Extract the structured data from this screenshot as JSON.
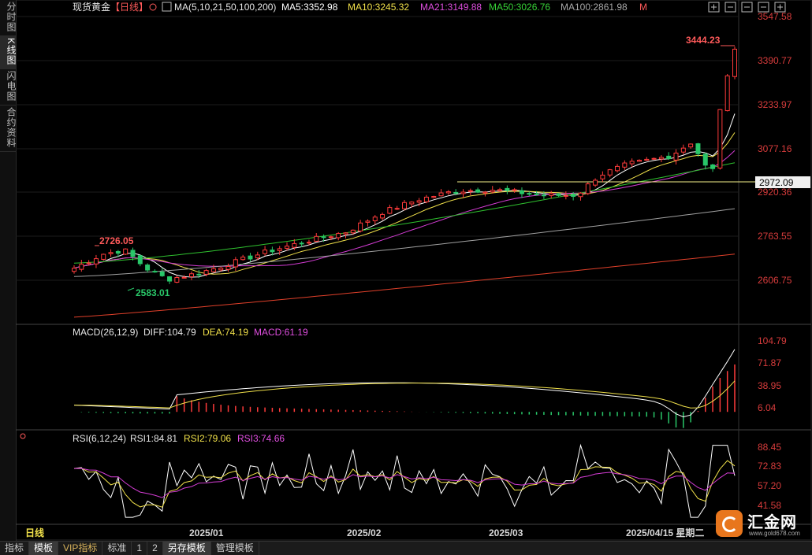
{
  "sidebar": {
    "tabs": [
      {
        "label": "分时图",
        "active": false
      },
      {
        "label": "K线图",
        "active": true
      },
      {
        "label": "闪电图",
        "active": false
      },
      {
        "label": "合约资料",
        "active": false
      }
    ]
  },
  "header": {
    "instrument": "现货黄金",
    "period": "【日线】",
    "ma_label": "MA(5,10,21,50,100,200)",
    "ma5": "MA5:3352.98",
    "ma10": "MA10:3245.32",
    "ma21": "MA21:3149.88",
    "ma50": "MA50:3026.76",
    "ma100": "MA100:2861.98",
    "more": "M"
  },
  "colors": {
    "up": "#ff3b3b",
    "down": "#29c769",
    "ma5": "#ffffff",
    "ma10": "#f0e04a",
    "ma21": "#d43cd4",
    "ma50": "#2fc12f",
    "ma100": "#a0a0a0",
    "ma200": "#e0402a",
    "axis": "#d83c3c",
    "hline": "#f5f08a"
  },
  "price_axis": [
    "3547.58",
    "3390.77",
    "3233.97",
    "3077.16",
    "2920.36",
    "2763.55",
    "2606.75"
  ],
  "price_labels": {
    "high": "3444.23",
    "left_high": "2726.05",
    "low": "2583.01",
    "hline": "2972.09"
  },
  "macd": {
    "label": "MACD(26,12,9)",
    "diff": "DIFF:104.79",
    "dea": "DEA:74.19",
    "macd": "MACD:61.19",
    "axis": [
      "104.79",
      "71.87",
      "38.95",
      "6.04"
    ]
  },
  "rsi": {
    "label": "RSI(6,12,24)",
    "rsi1": "RSI1:84.81",
    "rsi2": "RSI2:79.06",
    "rsi3": "RSI3:74.66",
    "axis": [
      "88.45",
      "72.83",
      "57.20",
      "41.58"
    ]
  },
  "time_axis": {
    "period": "日线",
    "labels": [
      "2025/01",
      "2025/02",
      "2025/03",
      "2025/04/15 星期二"
    ]
  },
  "toolbar_icons": [
    "zoom-in-icon",
    "zoom-out-icon",
    "maximize-icon",
    "settings-icon",
    "close-icon"
  ],
  "bottom_tabs": [
    {
      "label": "指标",
      "active": false
    },
    {
      "label": "模板",
      "active": true
    },
    {
      "label": "VIP指标",
      "active": false,
      "vip": true
    },
    {
      "label": "标准",
      "active": false
    },
    {
      "label": "1",
      "active": false
    },
    {
      "label": "2",
      "active": false
    },
    {
      "label": "另存模板",
      "active": true
    },
    {
      "label": "管理模板",
      "active": false
    }
  ],
  "logo": {
    "name": "汇金网",
    "url": "www.gold678.com"
  }
}
